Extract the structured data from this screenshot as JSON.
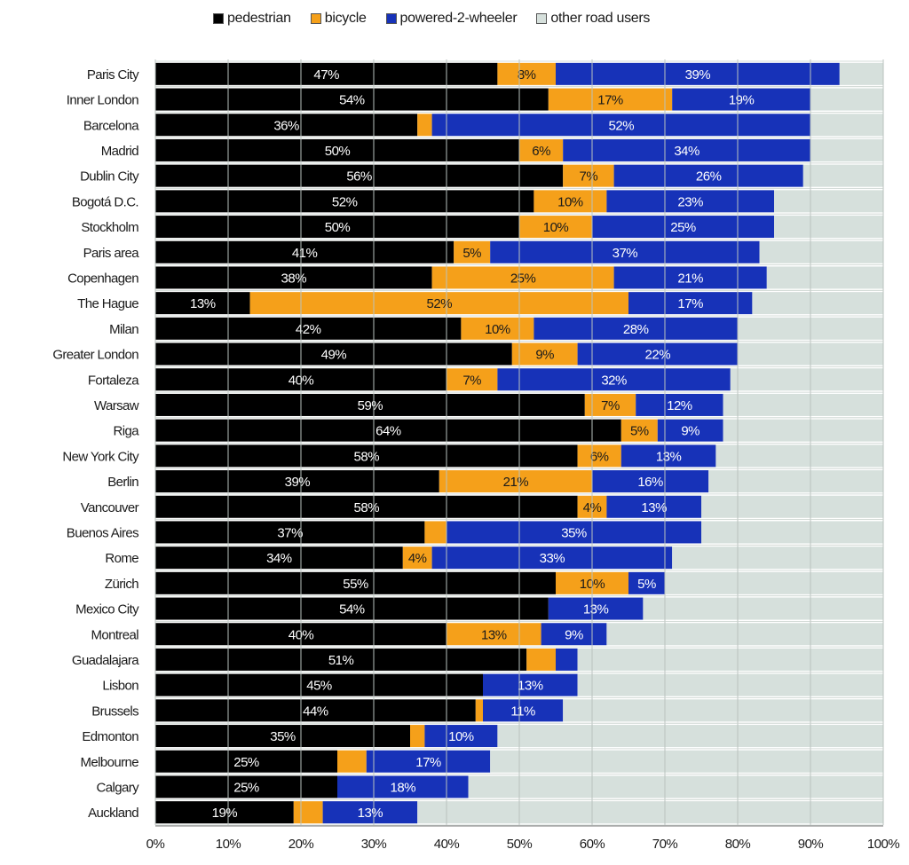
{
  "chart_data": {
    "type": "bar",
    "orientation": "horizontal",
    "stacked": true,
    "xlim": [
      0,
      100
    ],
    "x_ticks": [
      "0%",
      "10%",
      "20%",
      "30%",
      "40%",
      "50%",
      "60%",
      "70%",
      "80%",
      "90%",
      "100%"
    ],
    "grid": "vertical",
    "legend_position": "top",
    "categories": [
      "Paris City",
      "Inner London",
      "Barcelona",
      "Madrid",
      "Dublin City",
      "Bogotá D.C.",
      "Stockholm",
      "Paris area",
      "Copenhagen",
      "The Hague",
      "Milan",
      "Greater London",
      "Fortaleza",
      "Warsaw",
      "Riga",
      "New York City",
      "Berlin",
      "Vancouver",
      "Buenos Aires",
      "Rome",
      "Zürich",
      "Mexico City",
      "Montreal",
      "Guadalajara",
      "Lisbon",
      "Brussels",
      "Edmonton",
      "Melbourne",
      "Calgary",
      "Auckland"
    ],
    "series": [
      {
        "name": "pedestrian",
        "color": "#000000",
        "label_color": "#ffffff",
        "values": [
          47,
          54,
          36,
          50,
          56,
          52,
          50,
          41,
          38,
          13,
          42,
          49,
          40,
          59,
          64,
          58,
          39,
          58,
          37,
          34,
          55,
          54,
          40,
          51,
          45,
          44,
          35,
          25,
          25,
          19
        ],
        "labels": [
          "47%",
          "54%",
          "36%",
          "50%",
          "56%",
          "52%",
          "50%",
          "41%",
          "38%",
          "13%",
          "42%",
          "49%",
          "40%",
          "59%",
          "64%",
          "58%",
          "39%",
          "58%",
          "37%",
          "34%",
          "55%",
          "54%",
          "40%",
          "51%",
          "45%",
          "44%",
          "35%",
          "25%",
          "25%",
          "19%"
        ]
      },
      {
        "name": "bicycle",
        "color": "#f5a01a",
        "label_color": "#1a1a1a",
        "values": [
          8,
          17,
          2,
          6,
          7,
          10,
          10,
          5,
          25,
          52,
          10,
          9,
          7,
          7,
          5,
          6,
          21,
          4,
          3,
          4,
          10,
          0,
          13,
          4,
          0,
          1,
          2,
          4,
          0,
          4
        ],
        "labels": [
          "8%",
          "17%",
          "",
          "6%",
          "7%",
          "10%",
          "10%",
          "5%",
          "25%",
          "52%",
          "10%",
          "9%",
          "7%",
          "7%",
          "5%",
          "6%",
          "21%",
          "4%",
          "",
          "4%",
          "10%",
          "",
          "13%",
          "",
          "",
          "",
          "",
          "",
          "",
          ""
        ]
      },
      {
        "name": "powered-2-wheeler",
        "color": "#1732b8",
        "label_color": "#ffffff",
        "values": [
          39,
          19,
          52,
          34,
          26,
          23,
          25,
          37,
          21,
          17,
          28,
          22,
          32,
          12,
          9,
          13,
          16,
          13,
          35,
          33,
          5,
          13,
          9,
          3,
          13,
          11,
          10,
          17,
          18,
          13
        ],
        "labels": [
          "39%",
          "19%",
          "52%",
          "34%",
          "26%",
          "23%",
          "25%",
          "37%",
          "21%",
          "17%",
          "28%",
          "22%",
          "32%",
          "12%",
          "9%",
          "13%",
          "16%",
          "13%",
          "35%",
          "33%",
          "5%",
          "13%",
          "9%",
          "",
          "13%",
          "11%",
          "10%",
          "17%",
          "18%",
          "13%"
        ]
      },
      {
        "name": "other road users",
        "color": "#d6e0dc",
        "label_color": "#1a1a1a",
        "values": [
          6,
          10,
          10,
          10,
          11,
          15,
          15,
          17,
          16,
          18,
          20,
          20,
          21,
          22,
          22,
          23,
          24,
          25,
          25,
          29,
          30,
          33,
          38,
          42,
          42,
          44,
          53,
          54,
          57,
          64
        ],
        "labels": [
          "",
          "",
          "",
          "",
          "",
          "",
          "",
          "",
          "",
          "",
          "",
          "",
          "",
          "",
          "",
          "",
          "",
          "",
          "",
          "",
          "",
          "",
          "",
          "",
          "",
          "",
          "",
          "",
          "",
          ""
        ]
      }
    ]
  }
}
